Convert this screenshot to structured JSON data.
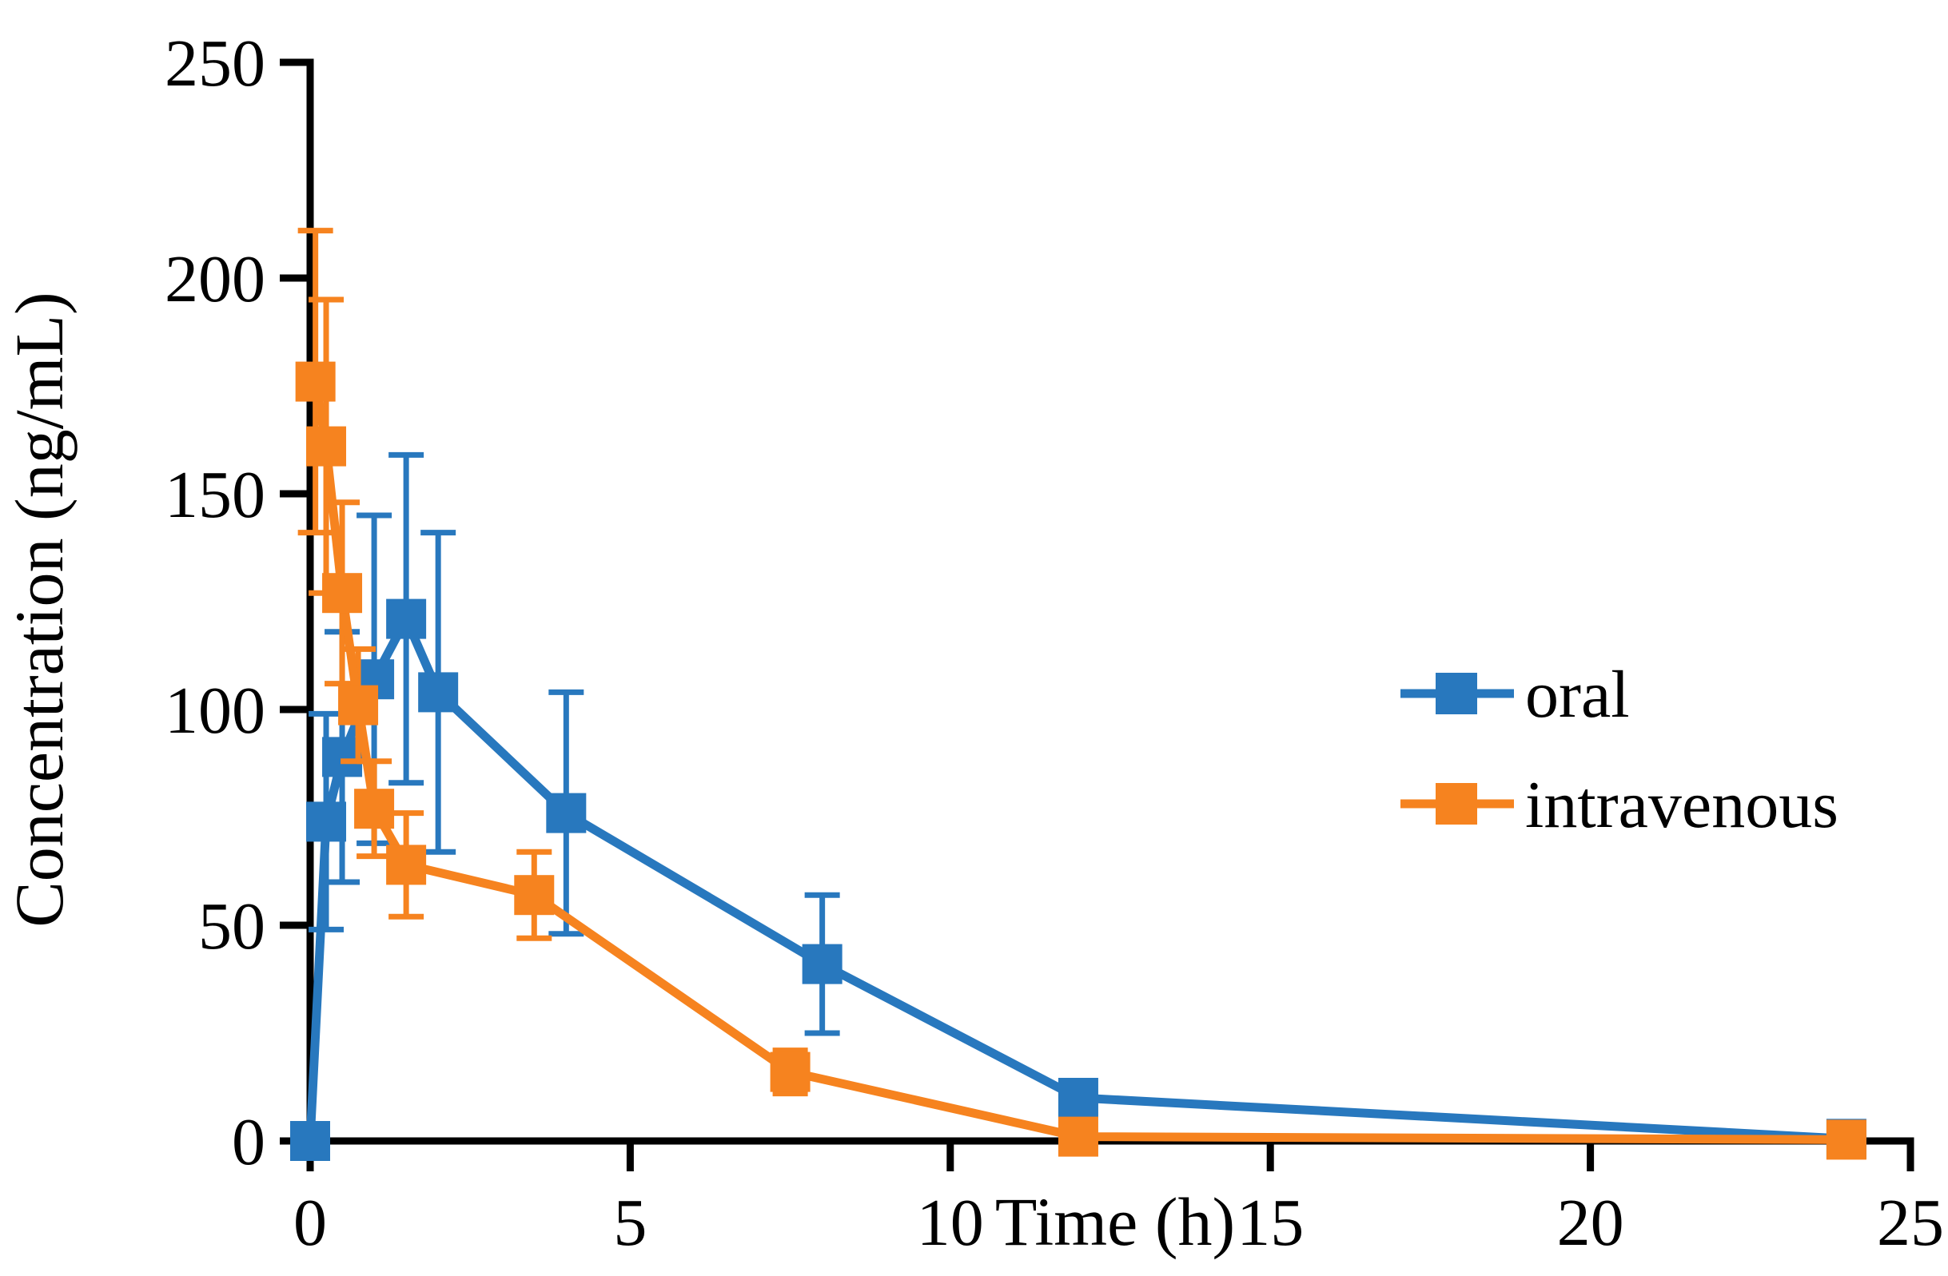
{
  "chart_data": {
    "type": "line",
    "title": "",
    "xlabel": "Time (h)",
    "ylabel": "Concentration (ng/mL)",
    "xlim": [
      0,
      25
    ],
    "ylim": [
      0,
      250
    ],
    "xticks": [
      0,
      5,
      10,
      15,
      20,
      25
    ],
    "yticks": [
      0,
      50,
      100,
      150,
      200,
      250
    ],
    "grid": false,
    "legend_position": "middle-right",
    "marker": "square",
    "error_bars": true,
    "axis_color": "#000000",
    "series": [
      {
        "name": "oral",
        "color": "#2878BE",
        "points": [
          {
            "t": 0,
            "c": 0,
            "err": 0
          },
          {
            "t": 0.25,
            "c": 74,
            "err": 25
          },
          {
            "t": 0.5,
            "c": 89,
            "err": 29
          },
          {
            "t": 1,
            "c": 107,
            "err": 38
          },
          {
            "t": 1.5,
            "c": 121,
            "err": 38
          },
          {
            "t": 2,
            "c": 104,
            "err": 37
          },
          {
            "t": 4,
            "c": 76,
            "err": 28
          },
          {
            "t": 8,
            "c": 41,
            "err": 16
          },
          {
            "t": 12,
            "c": 10,
            "err": 0
          },
          {
            "t": 24,
            "c": 0.5,
            "err": 0
          }
        ]
      },
      {
        "name": "intravenous",
        "color": "#F6831F",
        "points": [
          {
            "t": 0.083,
            "c": 176,
            "err": 35
          },
          {
            "t": 0.25,
            "c": 161,
            "err": 34
          },
          {
            "t": 0.5,
            "c": 127,
            "err": 21
          },
          {
            "t": 0.75,
            "c": 101,
            "err": 13
          },
          {
            "t": 1,
            "c": 77,
            "err": 11
          },
          {
            "t": 1.5,
            "c": 64,
            "err": 12
          },
          {
            "t": 3.5,
            "c": 57,
            "err": 10
          },
          {
            "t": 7.5,
            "c": 16,
            "err": 5
          },
          {
            "t": 12,
            "c": 1,
            "err": 0
          },
          {
            "t": 24,
            "c": 0.3,
            "err": 0
          }
        ]
      }
    ]
  }
}
